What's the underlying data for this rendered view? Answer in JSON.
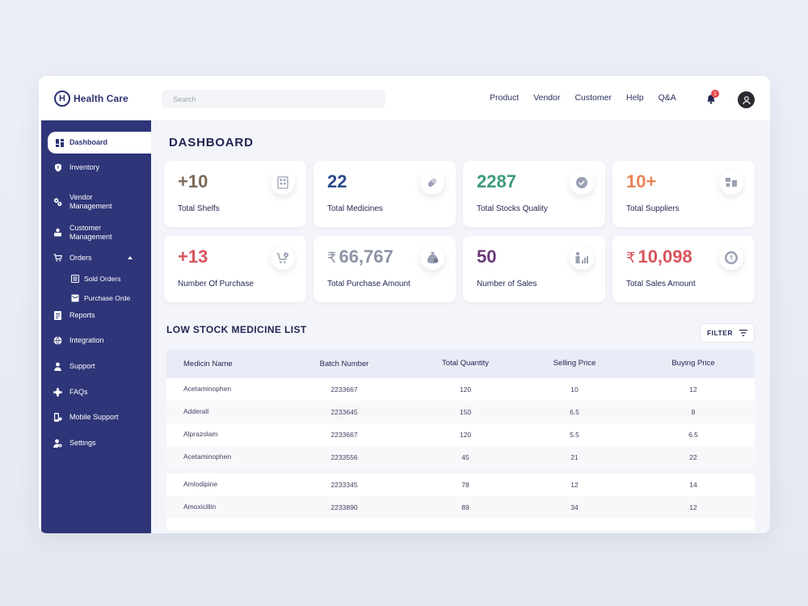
{
  "app": {
    "name": "Health Care",
    "logo_letter": "H"
  },
  "search": {
    "placeholder": "Search",
    "value": ""
  },
  "topnav": [
    "Product",
    "Vendor",
    "Customer",
    "Help",
    "Q&A"
  ],
  "notifications": {
    "count": "1"
  },
  "sidebar": {
    "items": [
      {
        "label": "Dashboard",
        "icon": "grid-icon",
        "active": true
      },
      {
        "label": "Inventory",
        "icon": "shield-icon"
      },
      {
        "label": "Vendor\nManagement",
        "icon": "gears-icon"
      },
      {
        "label": "Customer\nManagement",
        "icon": "user-card-icon"
      },
      {
        "label": "Orders",
        "icon": "cart-icon",
        "expanded": true
      },
      {
        "label": "Reports",
        "icon": "report-icon"
      },
      {
        "label": "Integration",
        "icon": "globe-icon"
      },
      {
        "label": "Support",
        "icon": "person-icon"
      },
      {
        "label": "FAQs",
        "icon": "puzzle-icon"
      },
      {
        "label": "Mobile Support",
        "icon": "mobile-icon"
      },
      {
        "label": "Settings",
        "icon": "user-gear-icon"
      }
    ],
    "orders_sub": [
      {
        "label": "Sold Orders",
        "icon": "list-icon"
      },
      {
        "label": "Purchase Orde",
        "icon": "envelope-icon"
      }
    ]
  },
  "page": {
    "title": "DASHBOARD"
  },
  "colors": {
    "sidebar": "#2e3578",
    "shelves": "#7d6a58",
    "medicines": "#2c4c8c",
    "quality": "#3d9a7e",
    "suppliers": "#e88458",
    "purchase": "#d9545c",
    "purchase_amount": "#8d93a6",
    "sales": "#6a3a7a",
    "sales_amount": "#d9545c"
  },
  "stats": [
    {
      "value": "+10",
      "label": "Total Shelfs",
      "icon": "shelf-icon"
    },
    {
      "value": "22",
      "label": "Total Medicines",
      "icon": "pill-icon"
    },
    {
      "value": "2287",
      "label": "Total Stocks  Quality",
      "icon": "badge-check-icon"
    },
    {
      "value": "10+",
      "label": "Total Suppliers",
      "icon": "suppliers-icon"
    },
    {
      "value": "+13",
      "label": "Number Of Purchase",
      "icon": "cart-check-icon"
    },
    {
      "currency": "₹",
      "value": "66,767",
      "label": "Total Purchase Amount",
      "icon": "money-bag-icon"
    },
    {
      "value": "50",
      "label": "Number of Sales",
      "icon": "sales-chart-icon"
    },
    {
      "currency": "₹",
      "value": "10,098",
      "label": "Total Sales Amount",
      "icon": "rupee-coin-icon"
    }
  ],
  "low_stock": {
    "title": "LOW STOCK MEDICINE LIST",
    "filter_label": "FILTER",
    "columns": [
      "Medicin Name",
      "Batch Number",
      "Total Quantity",
      "Selling Price",
      "Buying Price"
    ],
    "rows": [
      [
        "Acetaminophen",
        "2233667",
        "120",
        "10",
        "12"
      ],
      [
        "Adderall",
        "2233645",
        "150",
        "6.5",
        "8"
      ],
      [
        "Alprazolam",
        "2233667",
        "120",
        "5.5",
        "6.5"
      ],
      [
        "Acetaminophen",
        "2233556",
        "45",
        "21",
        "22"
      ],
      [
        "Amlodipine",
        "2233345",
        "78",
        "12",
        "14"
      ],
      [
        "Amoxicillin",
        "2233890",
        "89",
        "34",
        "12"
      ]
    ]
  }
}
